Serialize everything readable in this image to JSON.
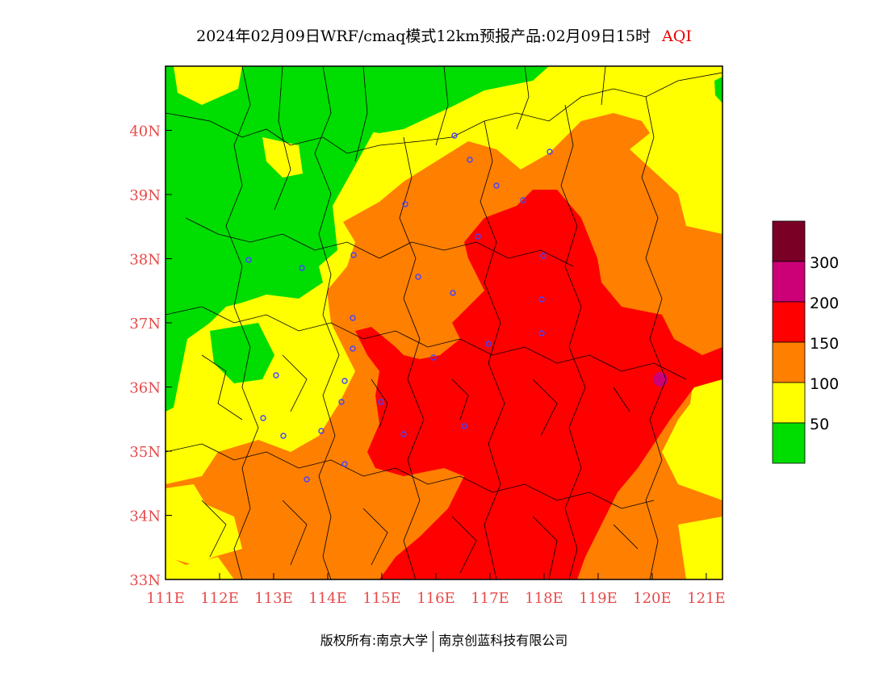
{
  "title": {
    "main": "2024年02月09日WRF/cmaq模式12km预报产品:02月09日15时",
    "variable": "AQI"
  },
  "map": {
    "x_ticks": [
      "111E",
      "112E",
      "113E",
      "114E",
      "115E",
      "116E",
      "117E",
      "118E",
      "119E",
      "120E",
      "121E"
    ],
    "y_ticks": [
      "33N",
      "34N",
      "35N",
      "36N",
      "37N",
      "38N",
      "39N",
      "40N"
    ],
    "lon_range": [
      111,
      121.3
    ],
    "lat_range": [
      33,
      41
    ]
  },
  "legend": {
    "labels": [
      "300",
      "200",
      "150",
      "100",
      "50"
    ],
    "colors": [
      "#7a0026",
      "#cc0077",
      "#ff0000",
      "#ff7f00",
      "#ffff00",
      "#00dd00"
    ]
  },
  "footer": {
    "copyright": "版权所有:南京大学",
    "company": "南京创蓝科技有限公司"
  }
}
